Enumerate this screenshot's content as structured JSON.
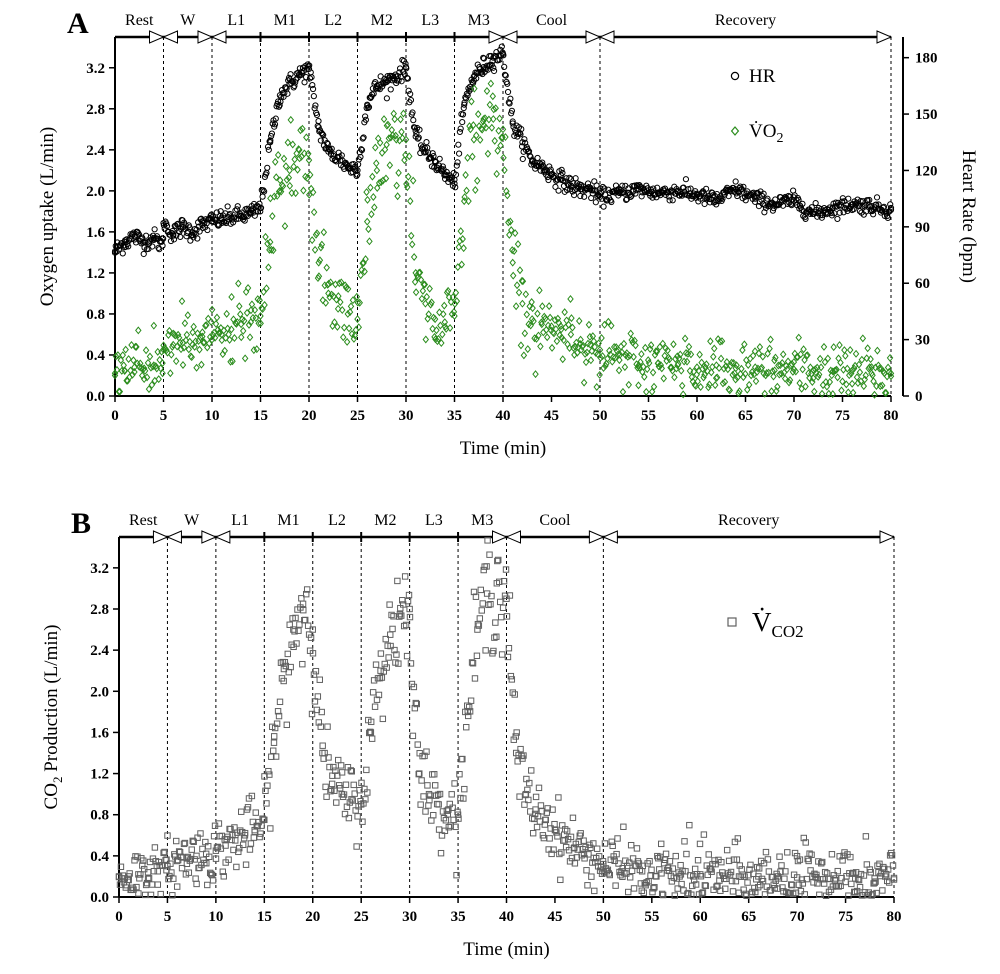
{
  "chart_data": [
    {
      "panel": "A",
      "type": "scatter",
      "xlabel": "Time (min)",
      "ylabel": "Oxygen uptake (L/min)",
      "y2label": "Heart Rate (bpm)",
      "xlim": [
        0,
        80
      ],
      "ylim": [
        0,
        3.5
      ],
      "y2lim": [
        0,
        191
      ],
      "xticks": [
        0,
        5,
        10,
        15,
        20,
        25,
        30,
        35,
        40,
        45,
        50,
        55,
        60,
        65,
        70,
        75,
        80
      ],
      "yticks": [
        0.0,
        0.4,
        0.8,
        1.2,
        1.6,
        2.0,
        2.4,
        2.8,
        3.2
      ],
      "y2ticks": [
        0,
        30,
        60,
        90,
        120,
        150,
        180
      ],
      "phase_boundaries": [
        5,
        10,
        15,
        20,
        25,
        30,
        35,
        40,
        50,
        80
      ],
      "phases": [
        {
          "label": "Rest",
          "start": 0,
          "end": 5
        },
        {
          "label": "W",
          "start": 5,
          "end": 10
        },
        {
          "label": "L1",
          "start": 10,
          "end": 15
        },
        {
          "label": "M1",
          "start": 15,
          "end": 20
        },
        {
          "label": "L2",
          "start": 20,
          "end": 25
        },
        {
          "label": "M2",
          "start": 25,
          "end": 30
        },
        {
          "label": "L3",
          "start": 30,
          "end": 35
        },
        {
          "label": "M3",
          "start": 35,
          "end": 40
        },
        {
          "label": "Cool",
          "start": 40,
          "end": 50
        },
        {
          "label": "Recovery",
          "start": 50,
          "end": 80
        }
      ],
      "legend": {
        "hr": "HR",
        "vo2_main": "V̇O",
        "vo2_sub": "2",
        "placement": "upper-right"
      },
      "series": [
        {
          "name": "HR",
          "axis": "right",
          "marker": "circle",
          "color": "#000000",
          "x": [
            0,
            1,
            2,
            3,
            4,
            4.9,
            5,
            6,
            7,
            8,
            9,
            10,
            11,
            12,
            13,
            14,
            15,
            16,
            17,
            18,
            19,
            20,
            21,
            22,
            23,
            24,
            25,
            26,
            27,
            28,
            29,
            30,
            31,
            32,
            33,
            34,
            35,
            36,
            37,
            38,
            39,
            40,
            41,
            42,
            43,
            44,
            45,
            46,
            47,
            48,
            49,
            50,
            52,
            54,
            56,
            58,
            60,
            62,
            64,
            66,
            68,
            70,
            72,
            74,
            76,
            78,
            80
          ],
          "y": [
            77,
            82,
            85,
            82,
            84,
            80,
            92,
            86,
            90,
            87,
            91,
            93,
            94,
            95,
            96,
            97,
            100,
            135,
            160,
            166,
            171,
            174,
            143,
            130,
            127,
            122,
            120,
            155,
            165,
            167,
            170,
            175,
            138,
            130,
            125,
            118,
            113,
            155,
            170,
            175,
            180,
            182,
            145,
            135,
            125,
            122,
            118,
            115,
            112,
            110,
            110,
            106,
            108,
            110,
            108,
            109,
            107,
            104,
            110,
            105,
            102,
            104,
            97,
            100,
            102,
            101,
            99
          ]
        },
        {
          "name": "V̇O2",
          "axis": "left",
          "marker": "diamond",
          "color": "#2a8c1c",
          "x": [
            0,
            1,
            2,
            3,
            4,
            4.9,
            5,
            6,
            7,
            8,
            9,
            10,
            11,
            12,
            13,
            14,
            15,
            16,
            17,
            18,
            19,
            20,
            21,
            22,
            23,
            24,
            25,
            26,
            27,
            28,
            29,
            30,
            31,
            32,
            33,
            34,
            35,
            36,
            37,
            38,
            39,
            40,
            41,
            42,
            43,
            44,
            45,
            46,
            47,
            48,
            49,
            50,
            52,
            54,
            56,
            58,
            60,
            62,
            64,
            66,
            68,
            70,
            72,
            74,
            76,
            78,
            80
          ],
          "y": [
            0.2,
            0.25,
            0.28,
            0.27,
            0.3,
            0.32,
            0.45,
            0.5,
            0.52,
            0.5,
            0.58,
            0.55,
            0.6,
            0.65,
            0.7,
            0.72,
            0.78,
            1.5,
            2.0,
            2.2,
            2.4,
            2.3,
            1.3,
            1.0,
            0.85,
            0.8,
            0.75,
            1.7,
            2.2,
            2.45,
            2.5,
            2.5,
            1.2,
            0.9,
            0.75,
            0.72,
            0.78,
            1.9,
            2.5,
            2.7,
            2.7,
            2.6,
            1.3,
            0.9,
            0.75,
            0.7,
            0.68,
            0.65,
            0.6,
            0.55,
            0.5,
            0.45,
            0.35,
            0.3,
            0.32,
            0.3,
            0.28,
            0.3,
            0.27,
            0.28,
            0.25,
            0.26,
            0.25,
            0.24,
            0.25,
            0.22,
            0.22
          ]
        }
      ]
    },
    {
      "panel": "B",
      "type": "scatter",
      "xlabel": "Time (min)",
      "ylabel_main": "CO",
      "ylabel_sub": "2",
      "ylabel_rest": " Production (L/min)",
      "xlim": [
        0,
        80
      ],
      "ylim": [
        0,
        3.5
      ],
      "xticks": [
        0,
        5,
        10,
        15,
        20,
        25,
        30,
        35,
        40,
        45,
        50,
        55,
        60,
        65,
        70,
        75,
        80
      ],
      "yticks": [
        0.0,
        0.4,
        0.8,
        1.2,
        1.6,
        2.0,
        2.4,
        2.8,
        3.2
      ],
      "phase_boundaries": [
        5,
        10,
        15,
        20,
        25,
        30,
        35,
        40,
        50,
        80
      ],
      "phases": [
        {
          "label": "Rest",
          "start": 0,
          "end": 5
        },
        {
          "label": "W",
          "start": 5,
          "end": 10
        },
        {
          "label": "L1",
          "start": 10,
          "end": 15
        },
        {
          "label": "M1",
          "start": 15,
          "end": 20
        },
        {
          "label": "L2",
          "start": 20,
          "end": 25
        },
        {
          "label": "M2",
          "start": 25,
          "end": 30
        },
        {
          "label": "L3",
          "start": 30,
          "end": 35
        },
        {
          "label": "M3",
          "start": 35,
          "end": 40
        },
        {
          "label": "Cool",
          "start": 40,
          "end": 50
        },
        {
          "label": "Recovery",
          "start": 50,
          "end": 80
        }
      ],
      "legend": {
        "vco2_main": "V̇",
        "vco2_sub": "CO2",
        "placement": "upper-right"
      },
      "series": [
        {
          "name": "V̇CO2",
          "axis": "left",
          "marker": "square",
          "color": "#606060",
          "x": [
            0,
            1,
            2,
            3,
            4,
            4.9,
            5,
            6,
            7,
            8,
            9,
            10,
            11,
            12,
            13,
            14,
            15,
            16,
            17,
            18,
            19,
            20,
            21,
            22,
            23,
            24,
            25,
            26,
            27,
            28,
            29,
            30,
            31,
            32,
            33,
            34,
            35,
            36,
            37,
            38,
            39,
            40,
            41,
            42,
            43,
            44,
            45,
            46,
            47,
            48,
            49,
            50,
            52,
            54,
            56,
            58,
            60,
            62,
            64,
            66,
            68,
            70,
            72,
            74,
            76,
            78,
            80
          ],
          "y": [
            0.2,
            0.2,
            0.22,
            0.24,
            0.25,
            0.26,
            0.3,
            0.35,
            0.38,
            0.4,
            0.42,
            0.45,
            0.5,
            0.55,
            0.6,
            0.65,
            0.75,
            1.5,
            2.1,
            2.6,
            2.85,
            2.6,
            1.4,
            1.1,
            1.0,
            0.95,
            0.9,
            1.6,
            2.2,
            2.55,
            2.75,
            2.8,
            1.2,
            1.0,
            0.9,
            0.85,
            0.8,
            1.8,
            2.6,
            2.95,
            3.05,
            2.9,
            1.4,
            1.0,
            0.85,
            0.75,
            0.65,
            0.55,
            0.48,
            0.42,
            0.38,
            0.32,
            0.28,
            0.25,
            0.23,
            0.22,
            0.22,
            0.21,
            0.2,
            0.2,
            0.2,
            0.19,
            0.19,
            0.18,
            0.18,
            0.18,
            0.17
          ]
        }
      ]
    }
  ]
}
